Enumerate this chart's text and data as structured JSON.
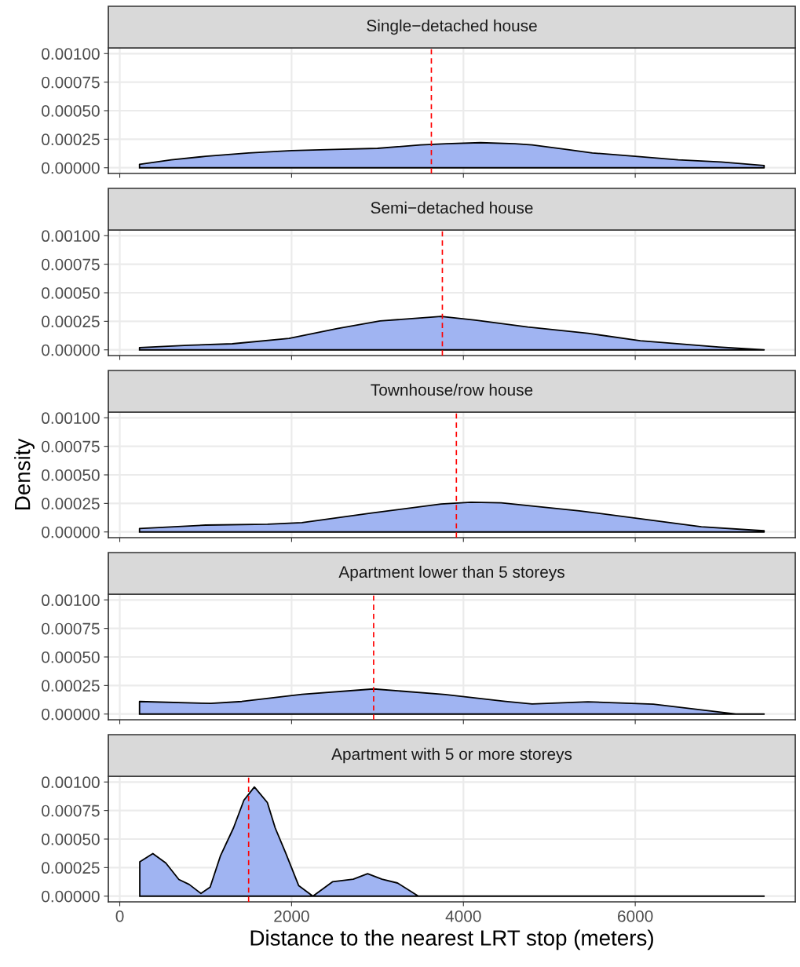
{
  "chart_data": [
    {
      "type": "area",
      "title": "Single−detached house",
      "x": [
        230,
        600,
        1000,
        1500,
        2000,
        2500,
        3000,
        3500,
        3800,
        4200,
        4600,
        4800,
        5200,
        5500,
        6000,
        6500,
        7000,
        7500
      ],
      "series": [
        {
          "color": "#a0b4f2",
          "values": [
            3e-05,
            7e-05,
            0.0001,
            0.00013,
            0.00015,
            0.00016,
            0.00017,
            0.0002,
            0.00021,
            0.00022,
            0.00021,
            0.0002,
            0.00016,
            0.00013,
            0.0001,
            7e-05,
            5e-05,
            2e-05
          ]
        }
      ],
      "xlim": [
        -133,
        7863
      ],
      "xticks": [
        0,
        2000,
        4000,
        6000
      ],
      "ylim": [
        -5e-05,
        0.00105
      ],
      "yticks": [
        {
          "value": 0,
          "label": "0.00000"
        },
        {
          "value": 0.00025,
          "label": "0.00025"
        },
        {
          "value": 0.0005,
          "label": "0.00050"
        },
        {
          "value": 0.00075,
          "label": "0.00075"
        },
        {
          "value": 0.001,
          "label": "0.00100"
        }
      ],
      "tick_labels": "y",
      "grid": true,
      "ref_lines": [
        {
          "axis": "x",
          "value": 3627,
          "color": "#ff0000",
          "line_style": "dashed"
        }
      ]
    },
    {
      "type": "area",
      "title": "Semi−detached house",
      "x": [
        230,
        800,
        1310,
        1970,
        2530,
        3030,
        3740,
        4140,
        4750,
        5450,
        6060,
        6970,
        7500
      ],
      "series": [
        {
          "color": "#a0b4f2",
          "values": [
            2e-05,
            4e-05,
            5.3e-05,
            0.0001,
            0.000187,
            0.000253,
            0.000293,
            0.00026,
            0.0002,
            0.000145,
            8e-05,
            2.5e-05,
            0
          ]
        }
      ],
      "xlim": [
        -133,
        7863
      ],
      "xticks": [
        0,
        2000,
        4000,
        6000
      ],
      "ylim": [
        -5e-05,
        0.00105
      ],
      "yticks": [
        {
          "value": 0,
          "label": "0.00000"
        },
        {
          "value": 0.00025,
          "label": "0.00025"
        },
        {
          "value": 0.0005,
          "label": "0.00050"
        },
        {
          "value": 0.00075,
          "label": "0.00075"
        },
        {
          "value": 0.001,
          "label": "0.00100"
        }
      ],
      "tick_labels": "y",
      "grid": true,
      "ref_lines": [
        {
          "axis": "x",
          "value": 3755,
          "color": "#ff0000",
          "line_style": "dashed"
        }
      ]
    },
    {
      "type": "area",
      "title": "Townhouse/row house",
      "ylabel": "Density",
      "x": [
        230,
        1000,
        1720,
        2120,
        2930,
        3740,
        4090,
        4440,
        5350,
        6770,
        7500
      ],
      "series": [
        {
          "color": "#a0b4f2",
          "values": [
            3e-05,
            6e-05,
            6.8e-05,
            8.2e-05,
            0.000165,
            0.000245,
            0.00026,
            0.000255,
            0.000185,
            4.6e-05,
            1e-05
          ]
        }
      ],
      "xlim": [
        -133,
        7863
      ],
      "xticks": [
        0,
        2000,
        4000,
        6000
      ],
      "ylim": [
        -5e-05,
        0.00105
      ],
      "yticks": [
        {
          "value": 0,
          "label": "0.00000"
        },
        {
          "value": 0.00025,
          "label": "0.00025"
        },
        {
          "value": 0.0005,
          "label": "0.00050"
        },
        {
          "value": 0.00075,
          "label": "0.00075"
        },
        {
          "value": 0.001,
          "label": "0.00100"
        }
      ],
      "tick_labels": "y",
      "grid": true,
      "ref_lines": [
        {
          "axis": "x",
          "value": 3918,
          "color": "#ff0000",
          "line_style": "dashed"
        }
      ]
    },
    {
      "type": "area",
      "title": "Apartment lower than 5 storeys",
      "x": [
        230,
        1060,
        1420,
        2120,
        2955,
        3790,
        4490,
        4800,
        5450,
        6210,
        7170,
        7500
      ],
      "series": [
        {
          "color": "#a0b4f2",
          "values": [
            0.00011,
            9.3e-05,
            0.00011,
            0.000172,
            0.00022,
            0.000171,
            0.00011,
            8.8e-05,
            0.000107,
            8.6e-05,
            0,
            0
          ]
        }
      ],
      "xlim": [
        -133,
        7863
      ],
      "xticks": [
        0,
        2000,
        4000,
        6000
      ],
      "ylim": [
        -5e-05,
        0.00105
      ],
      "yticks": [
        {
          "value": 0,
          "label": "0.00000"
        },
        {
          "value": 0.00025,
          "label": "0.00025"
        },
        {
          "value": 0.0005,
          "label": "0.00050"
        },
        {
          "value": 0.00075,
          "label": "0.00075"
        },
        {
          "value": 0.001,
          "label": "0.00100"
        }
      ],
      "tick_labels": "y",
      "grid": true,
      "ref_lines": [
        {
          "axis": "x",
          "value": 2955,
          "color": "#ff0000",
          "line_style": "dashed"
        }
      ]
    },
    {
      "type": "area",
      "title": "Apartment with 5 or more storeys",
      "xlabel": "Distance to the nearest LRT stop (meters)",
      "x": [
        233,
        385,
        536,
        688,
        809,
        945,
        1052,
        1173,
        1324,
        1445,
        1567,
        1718,
        1809,
        1930,
        2082,
        2248,
        2476,
        2718,
        2885,
        3052,
        3233,
        3476,
        4000,
        5000,
        6000,
        7000,
        7500
      ],
      "series": [
        {
          "color": "#a0b4f2",
          "values": [
            0.0003,
            0.000373,
            0.00029,
            0.000146,
            0.000102,
            2.4e-05,
            7.9e-05,
            0.000355,
            0.000598,
            0.00084,
            0.000956,
            0.00082,
            0.000598,
            0.00038,
            9.3e-05,
            0,
            0.000126,
            0.000148,
            0.000196,
            0.000148,
            0.000115,
            0,
            0,
            0,
            0,
            0,
            0
          ]
        }
      ],
      "xlim": [
        -133,
        7863
      ],
      "xticks": [
        0,
        2000,
        4000,
        6000
      ],
      "ylim": [
        -5e-05,
        0.00105
      ],
      "yticks": [
        {
          "value": 0,
          "label": "0.00000"
        },
        {
          "value": 0.00025,
          "label": "0.00025"
        },
        {
          "value": 0.0005,
          "label": "0.00050"
        },
        {
          "value": 0.00075,
          "label": "0.00075"
        },
        {
          "value": 0.001,
          "label": "0.00100"
        }
      ],
      "grid": true,
      "ref_lines": [
        {
          "axis": "x",
          "value": 1500,
          "color": "#ff0000",
          "line_style": "dashed"
        }
      ]
    }
  ]
}
